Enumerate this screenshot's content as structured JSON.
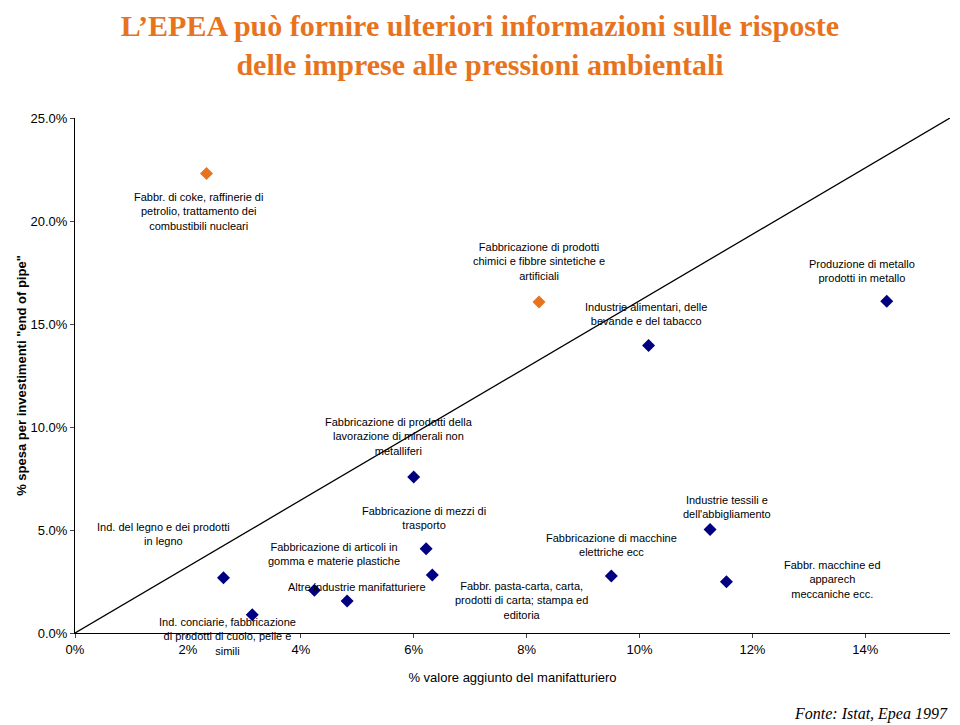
{
  "chart_data": {
    "type": "scatter",
    "title": "L’EPEA può fornire ulteriori informazioni sulle risposte delle imprese alle pressioni ambientali",
    "x_label": "% valore aggiunto del manifatturiero",
    "y_label": "% spesa per investimenti \"end of pipe\"",
    "source": "Fonte: Istat, Epea 1997",
    "xlim": [
      0,
      15.5
    ],
    "ylim": [
      0,
      25
    ],
    "xticks": [
      {
        "value": 0,
        "label": "0%"
      },
      {
        "value": 2,
        "label": "2%"
      },
      {
        "value": 4,
        "label": "4%"
      },
      {
        "value": 6,
        "label": "6%"
      },
      {
        "value": 8,
        "label": "8%"
      },
      {
        "value": 10,
        "label": "10%"
      },
      {
        "value": 12,
        "label": "12%"
      },
      {
        "value": 14,
        "label": "14%"
      }
    ],
    "yticks": [
      {
        "value": 0,
        "label": "0.0%"
      },
      {
        "value": 5,
        "label": "5.0%"
      },
      {
        "value": 10,
        "label": "10.0%"
      },
      {
        "value": 15,
        "label": "15.0%"
      },
      {
        "value": 20,
        "label": "20.0%"
      },
      {
        "value": 25,
        "label": "25.0%"
      }
    ],
    "grid": false,
    "series": [
      {
        "type": "scatter",
        "marker": "diamond",
        "x": [
          2.33,
          8.22,
          14.38,
          10.16,
          6.0,
          11.25,
          6.22,
          11.54,
          9.5,
          6.33,
          2.63,
          3.14,
          4.24,
          4.82
        ],
        "values": [
          22.3,
          16.07,
          16.1,
          13.96,
          7.57,
          5.03,
          4.09,
          2.49,
          2.77,
          2.82,
          2.68,
          0.89,
          2.07,
          1.55
        ],
        "labels": [
          "Fabbr. di coke, raffinerie di petrolio, trattamento dei combustibili nucleari",
          "Fabbricazione di prodotti chimici e fibbre sintetiche e artificiali",
          "Produzione di metallo prodotti in metallo",
          "Industrie alimentari, delle bevande e del tabacco",
          "Fabbricazione di prodotti della lavorazione di minerali non metalliferi",
          "Industrie tessili e dell'abbigliamento",
          "Fabbricazione di mezzi di trasporto",
          "Fabbr. macchine ed apparech meccaniche ecc.",
          "Fabbricazione di macchine elettriche ecc",
          "Fabbr. pasta-carta, carta, prodotti di carta; stampa ed editoria",
          "Ind. del legno e dei prodotti in legno",
          "Ind. conciarie, fabbricazione di prodotti di cuoio, pelle e simili",
          "Fabbricazione di articoli in gomma e materie plastiche",
          "Altre industrie manifatturiere"
        ],
        "colors": [
          "#E8731E",
          "#E8731E",
          "#000080",
          "#000080",
          "#000080",
          "#000080",
          "#000080",
          "#000080",
          "#000080",
          "#000080",
          "#000080",
          "#000080",
          "#000080",
          "#000080"
        ]
      },
      {
        "type": "line",
        "color": "#000000",
        "line_style": "solid",
        "x": [
          0,
          15.5
        ],
        "values": [
          0,
          25
        ]
      }
    ]
  }
}
